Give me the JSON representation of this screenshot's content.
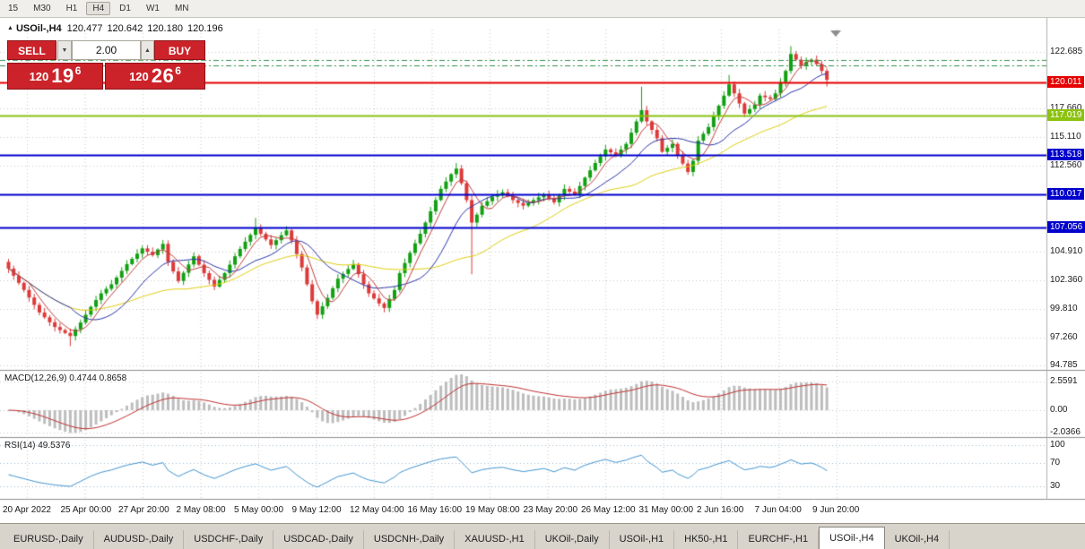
{
  "toolbar": {
    "timeframes": [
      "15",
      "M30",
      "H1",
      "H4",
      "D1",
      "W1",
      "MN"
    ],
    "active": "H4"
  },
  "chart_header": {
    "marker_icon": "▲",
    "symbol": "USOil-,H4",
    "open": "120.477",
    "high": "120.642",
    "low": "120.180",
    "close": "120.196"
  },
  "trade_panel": {
    "sell_label": "SELL",
    "buy_label": "BUY",
    "volume": "2.00",
    "dropdown_icon": "▼",
    "spinner_icon": "▲",
    "bid_prefix": "120",
    "bid_main": "19",
    "bid_pips": "6",
    "ask_prefix": "120",
    "ask_main": "26",
    "ask_pips": "6"
  },
  "price_axis": {
    "ticks": [
      122.685,
      117.66,
      115.11,
      112.56,
      104.91,
      102.36,
      99.81,
      97.26,
      94.785
    ]
  },
  "macd_panel": {
    "label": "MACD(12,26,9) 0.4744 0.8658",
    "axis": [
      "2.5591",
      "0.00",
      "-2.0366"
    ]
  },
  "rsi_panel": {
    "label": "RSI(14) 49.5376",
    "axis": [
      "100",
      "70",
      "30"
    ]
  },
  "time_axis": {
    "labels": [
      "20 Apr 2022",
      "25 Apr 00:00",
      "27 Apr 20:00",
      "2 May 08:00",
      "5 May 00:00",
      "9 May 12:00",
      "12 May 04:00",
      "16 May 16:00",
      "19 May 08:00",
      "23 May 20:00",
      "26 May 12:00",
      "31 May 00:00",
      "2 Jun 16:00",
      "7 Jun 04:00",
      "9 Jun 20:00"
    ]
  },
  "tabs": [
    {
      "label": "EURUSD-,Daily"
    },
    {
      "label": "AUDUSD-,Daily"
    },
    {
      "label": "USDCHF-,Daily"
    },
    {
      "label": "USDCAD-,Daily"
    },
    {
      "label": "USDCNH-,Daily"
    },
    {
      "label": "XAUUSD-,H1"
    },
    {
      "label": "UKOil-,Daily"
    },
    {
      "label": "USOil-,H1"
    },
    {
      "label": "HK50-,H1"
    },
    {
      "label": "EURCHF-,H1"
    },
    {
      "label": "USOil-,H4",
      "active": true
    },
    {
      "label": "UKOil-,H4"
    }
  ],
  "chart_data": {
    "type": "candlestick",
    "symbol": "USOil-",
    "timeframe": "H4",
    "last_ohlc": {
      "open": 120.477,
      "high": 120.642,
      "low": 120.18,
      "close": 120.196
    },
    "price_range": [
      94.785,
      122.685
    ],
    "first_open": 104.0,
    "closes": [
      103.4,
      102.77,
      102.13,
      101.5,
      100.83,
      100.17,
      99.5,
      99.07,
      98.63,
      98.2,
      97.93,
      97.67,
      97.4,
      98.0,
      98.6,
      99.3,
      100.0,
      100.6,
      101.2,
      101.6,
      102.0,
      102.6,
      103.2,
      103.8,
      104.27,
      104.73,
      105.2,
      104.9,
      104.6,
      105.1,
      105.6,
      104.0,
      103.15,
      102.3,
      103.03,
      103.77,
      104.5,
      103.75,
      103.0,
      102.4,
      101.8,
      102.4,
      103.0,
      103.75,
      104.5,
      105.15,
      105.8,
      106.4,
      107.0,
      106.5,
      106.0,
      105.5,
      105.93,
      106.37,
      106.8,
      105.9,
      104.7,
      103.5,
      102.0,
      100.5,
      99.3,
      100.05,
      100.8,
      101.65,
      102.5,
      102.93,
      103.37,
      103.8,
      102.9,
      102.0,
      101.2,
      100.75,
      100.3,
      99.9,
      100.7,
      101.5,
      103.0,
      103.9,
      104.8,
      105.65,
      106.5,
      107.5,
      108.5,
      109.5,
      110.5,
      111.15,
      111.8,
      112.3,
      111.0,
      109.5,
      107.5,
      108.2,
      109.0,
      109.4,
      109.8,
      110.0,
      110.2,
      109.85,
      109.5,
      109.25,
      109.0,
      109.25,
      109.5,
      109.75,
      110.0,
      109.65,
      109.3,
      109.9,
      110.5,
      110.25,
      110.0,
      110.75,
      111.5,
      112.15,
      112.8,
      113.4,
      114.0,
      113.75,
      113.5,
      114.0,
      114.5,
      115.5,
      116.5,
      117.5,
      116.5,
      115.75,
      115.0,
      113.8,
      114.15,
      114.5,
      113.5,
      112.75,
      112.0,
      113.0,
      114.8,
      115.4,
      116.0,
      117.0,
      117.9,
      118.8,
      119.8,
      119.0,
      118.1,
      117.2,
      117.6,
      118.0,
      118.8,
      118.65,
      118.5,
      119.0,
      120.0,
      121.0,
      122.5,
      122.0,
      121.5,
      121.8,
      122.0,
      121.6,
      121.0,
      120.2
    ],
    "wick_overrides": {
      "12": {
        "low": 96.5
      },
      "30": {
        "high": 105.95
      },
      "48": {
        "high": 107.9
      },
      "87": {
        "high": 112.8
      },
      "90": {
        "low": 102.9
      },
      "123": {
        "high": 119.6
      },
      "140": {
        "high": 120.64
      },
      "152": {
        "high": 123.2
      },
      "159": {
        "low": 119.6
      }
    },
    "levels": [
      {
        "price": 121.95,
        "color": "#2f8f46",
        "width": 1,
        "style": "dashdot",
        "axis_label": false
      },
      {
        "price": 121.45,
        "color": "#2f8f46",
        "width": 1,
        "style": "dashdot",
        "axis_label": false
      },
      {
        "price": 120.011,
        "color": "#e60000",
        "width": 2,
        "style": "solid",
        "axis_label": true
      },
      {
        "price": 117.019,
        "color": "#8cc210",
        "width": 2,
        "style": "solid",
        "axis_label": true
      },
      {
        "price": 113.518,
        "color": "#0000cd",
        "width": 2,
        "style": "solid",
        "axis_label": true
      },
      {
        "price": 110.017,
        "color": "#0000cd",
        "width": 2,
        "style": "solid",
        "axis_label": true
      },
      {
        "price": 107.056,
        "color": "#0000cd",
        "width": 2,
        "style": "solid",
        "axis_label": true
      }
    ],
    "moving_averages": [
      {
        "period": 34,
        "color": "#e0cf10",
        "width": 1
      },
      {
        "period": 13,
        "color": "#2b35a8",
        "width": 1
      },
      {
        "period": 5,
        "color": "#c43e3e",
        "width": 1
      }
    ],
    "indicators": [
      {
        "name": "MACD",
        "params": "12,26,9",
        "values": "0.4744 0.8658"
      },
      {
        "name": "RSI",
        "params": "14",
        "values": "49.5376"
      }
    ]
  },
  "colors": {
    "background": "#ffffff",
    "grid": "#c9c9c9",
    "candle_up": "#12a012",
    "candle_down": "#dd3a3a",
    "macd_histogram": "#bdbdbd",
    "macd_signal": "#c03030",
    "rsi_line": "#4094d0",
    "rsi_levels": "#9db8d2",
    "panel_separator": "#8e8e8e",
    "trade_red": "#cc2229"
  }
}
